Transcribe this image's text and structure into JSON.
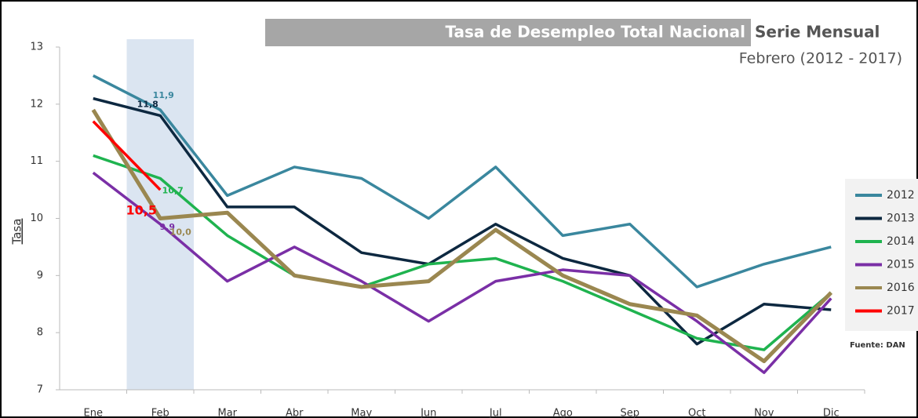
{
  "chart_data": {
    "type": "line",
    "title": "Tasa de Desempleo Total Nacional",
    "title_suffix": "Serie Mensual",
    "subtitle": "Febrero (2012 - 2017)",
    "y_label": "Tasa",
    "source": "Fuente: DAN",
    "categories": [
      "Ene",
      "Feb",
      "Mar",
      "Abr",
      "May",
      "Jun",
      "Jul",
      "Ago",
      "Sep",
      "Oct",
      "Nov",
      "Dic"
    ],
    "highlight_category": "Feb",
    "ylim": [
      7,
      13
    ],
    "yticks": [
      7,
      8,
      9,
      10,
      11,
      12,
      13
    ],
    "legend": "right",
    "series": [
      {
        "name": "2012",
        "color": "#3a879e",
        "values": [
          12.5,
          11.9,
          10.4,
          10.9,
          10.7,
          10.0,
          10.9,
          9.7,
          9.9,
          8.8,
          9.2,
          9.5
        ],
        "value_labels": [
          null,
          "11,9",
          null,
          null,
          null,
          null,
          null,
          null,
          null,
          null,
          null,
          null
        ]
      },
      {
        "name": "2013",
        "color": "#0d2840",
        "values": [
          12.1,
          11.8,
          10.2,
          10.2,
          9.4,
          9.2,
          9.9,
          9.3,
          9.0,
          7.8,
          8.5,
          8.4
        ],
        "value_labels": [
          null,
          "11,8",
          null,
          null,
          null,
          null,
          null,
          null,
          null,
          null,
          null,
          null
        ]
      },
      {
        "name": "2014",
        "color": "#1fb34f",
        "values": [
          11.1,
          10.7,
          9.7,
          9.0,
          8.8,
          9.2,
          9.3,
          8.9,
          8.4,
          7.9,
          7.7,
          8.7
        ],
        "value_labels": [
          null,
          "10,7",
          null,
          null,
          null,
          null,
          null,
          null,
          null,
          null,
          null,
          null
        ]
      },
      {
        "name": "2015",
        "color": "#7a2fa6",
        "values": [
          10.8,
          9.9,
          8.9,
          9.5,
          8.9,
          8.2,
          8.9,
          9.1,
          9.0,
          8.2,
          7.3,
          8.6
        ],
        "value_labels": [
          null,
          "9,9",
          null,
          null,
          null,
          null,
          null,
          null,
          null,
          null,
          null,
          null
        ]
      },
      {
        "name": "2016",
        "color": "#9a8750",
        "values": [
          11.9,
          10.0,
          10.1,
          9.0,
          8.8,
          8.9,
          9.8,
          9.0,
          8.5,
          8.3,
          7.5,
          8.7
        ],
        "value_labels": [
          null,
          "10,0",
          null,
          null,
          null,
          null,
          null,
          null,
          null,
          null,
          null,
          null
        ]
      },
      {
        "name": "2017",
        "color": "#ff0000",
        "values": [
          11.7,
          10.5,
          null,
          null,
          null,
          null,
          null,
          null,
          null,
          null,
          null,
          null
        ],
        "value_labels": [
          null,
          "10,5",
          null,
          null,
          null,
          null,
          null,
          null,
          null,
          null,
          null,
          null
        ]
      }
    ]
  }
}
